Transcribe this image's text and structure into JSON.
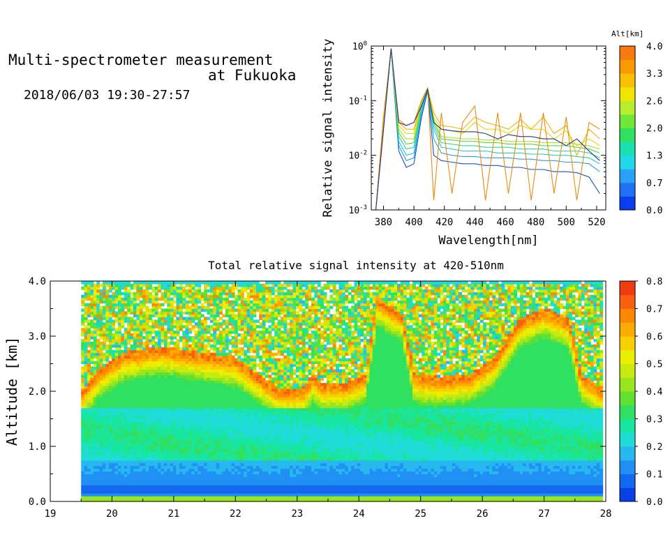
{
  "header": {
    "title_line1": "Multi-spectrometer measurement",
    "title_line2": "at Fukuoka",
    "datetime": "2018/06/03 19:30-27:57"
  },
  "chart_data": [
    {
      "type": "line",
      "title": "",
      "xlabel": "Wavelength[nm]",
      "ylabel": "Relative signal intensity",
      "xlim": [
        372,
        526
      ],
      "ylim": [
        0.001,
        1
      ],
      "y_scale": "log",
      "x_ticks": [
        "380",
        "400",
        "420",
        "440",
        "460",
        "480",
        "500",
        "520"
      ],
      "y_ticks": [
        "10-3",
        "10-2",
        "10-1",
        "100"
      ],
      "x": [
        375,
        380,
        385,
        390,
        395,
        400,
        405,
        409,
        413,
        418,
        425,
        432,
        440,
        447,
        455,
        462,
        470,
        477,
        485,
        492,
        500,
        507,
        515,
        522
      ],
      "colorbar": {
        "label": "Alt[km]",
        "ticks": [
          "0.0",
          "0.7",
          "1.3",
          "2.0",
          "2.6",
          "3.3",
          "4.0"
        ],
        "colors": [
          "#0a3cf0",
          "#1e70f5",
          "#2aa0f8",
          "#20d8e8",
          "#18e0b0",
          "#30e060",
          "#70e838",
          "#b8ec30",
          "#f0e400",
          "#f8c000",
          "#fa9a00",
          "#fa7a10"
        ]
      },
      "series": [
        {
          "color": "#1450c8",
          "values": [
            0.001,
            0.03,
            0.9,
            0.012,
            0.006,
            0.007,
            0.05,
            0.15,
            0.01,
            0.008,
            0.0075,
            0.007,
            0.007,
            0.0065,
            0.0065,
            0.006,
            0.006,
            0.0055,
            0.0055,
            0.005,
            0.005,
            0.0048,
            0.004,
            0.002
          ]
        },
        {
          "color": "#2a9ae8",
          "values": [
            0.001,
            0.035,
            0.9,
            0.015,
            0.008,
            0.009,
            0.06,
            0.16,
            0.02,
            0.011,
            0.01,
            0.0095,
            0.0095,
            0.009,
            0.009,
            0.009,
            0.0085,
            0.0085,
            0.008,
            0.008,
            0.0075,
            0.0075,
            0.007,
            0.005
          ]
        },
        {
          "color": "#20c8d0",
          "values": [
            0.001,
            0.04,
            0.9,
            0.018,
            0.01,
            0.011,
            0.07,
            0.17,
            0.03,
            0.014,
            0.013,
            0.012,
            0.012,
            0.012,
            0.011,
            0.011,
            0.011,
            0.0105,
            0.0105,
            0.01,
            0.01,
            0.0095,
            0.009,
            0.007
          ]
        },
        {
          "color": "#30d890",
          "values": [
            0.001,
            0.04,
            0.9,
            0.022,
            0.013,
            0.014,
            0.08,
            0.17,
            0.035,
            0.017,
            0.016,
            0.015,
            0.015,
            0.014,
            0.014,
            0.014,
            0.013,
            0.013,
            0.013,
            0.012,
            0.012,
            0.012,
            0.011,
            0.009
          ]
        },
        {
          "color": "#50d848",
          "values": [
            0.001,
            0.04,
            0.9,
            0.026,
            0.016,
            0.017,
            0.09,
            0.17,
            0.04,
            0.02,
            0.019,
            0.018,
            0.018,
            0.017,
            0.017,
            0.016,
            0.016,
            0.016,
            0.015,
            0.015,
            0.015,
            0.014,
            0.013,
            0.011
          ]
        },
        {
          "color": "#a8e030",
          "values": [
            0.001,
            0.04,
            0.9,
            0.03,
            0.02,
            0.02,
            0.09,
            0.17,
            0.045,
            0.022,
            0.021,
            0.02,
            0.02,
            0.019,
            0.019,
            0.018,
            0.018,
            0.018,
            0.017,
            0.017,
            0.017,
            0.016,
            0.015,
            0.013
          ]
        },
        {
          "color": "#e8d800",
          "values": [
            0.001,
            0.04,
            0.9,
            0.035,
            0.025,
            0.025,
            0.1,
            0.17,
            0.05,
            0.03,
            0.028,
            0.025,
            0.04,
            0.03,
            0.03,
            0.025,
            0.035,
            0.03,
            0.03,
            0.02,
            0.028,
            0.015,
            0.02,
            0.015
          ]
        },
        {
          "color": "#f0b000",
          "values": [
            0.001,
            0.05,
            0.9,
            0.04,
            0.03,
            0.03,
            0.1,
            0.17,
            0.06,
            0.035,
            0.033,
            0.03,
            0.05,
            0.04,
            0.035,
            0.03,
            0.045,
            0.03,
            0.05,
            0.025,
            0.035,
            0.01,
            0.03,
            0.02
          ]
        },
        {
          "color": "#e88a10",
          "values": [
            0.001,
            0.05,
            0.9,
            0.045,
            0.035,
            0.04,
            0.1,
            0.17,
            0.0015,
            0.06,
            0.002,
            0.04,
            0.08,
            0.0015,
            0.06,
            0.002,
            0.06,
            0.0015,
            0.06,
            0.002,
            0.05,
            0.0015,
            0.04,
            0.03
          ]
        },
        {
          "color": "#1a3a8a",
          "values": [
            0.001,
            0.03,
            0.9,
            0.04,
            0.035,
            0.04,
            0.08,
            0.16,
            0.04,
            0.03,
            0.028,
            0.027,
            0.027,
            0.025,
            0.02,
            0.024,
            0.022,
            0.022,
            0.02,
            0.02,
            0.015,
            0.02,
            0.012,
            0.008
          ]
        }
      ]
    },
    {
      "type": "heatmap",
      "title": "Total relative signal intensity at 420-510nm",
      "xlabel": "",
      "ylabel": "Altitude [km]",
      "xlim": [
        19,
        28
      ],
      "ylim": [
        0,
        4
      ],
      "x_ticks": [
        "19",
        "20",
        "21",
        "22",
        "23",
        "24",
        "25",
        "26",
        "27",
        "28"
      ],
      "y_ticks": [
        "0.0",
        "1.0",
        "2.0",
        "3.0",
        "4.0"
      ],
      "data_x_range": [
        19.5,
        27.95
      ],
      "cloud_base_km": [
        {
          "x": 19.5,
          "base": 1.9
        },
        {
          "x": 19.8,
          "base": 2.3
        },
        {
          "x": 20.2,
          "base": 2.6
        },
        {
          "x": 20.8,
          "base": 2.7
        },
        {
          "x": 21.4,
          "base": 2.6
        },
        {
          "x": 22.0,
          "base": 2.5
        },
        {
          "x": 22.5,
          "base": 2.1
        },
        {
          "x": 22.7,
          "base": 1.95
        },
        {
          "x": 23.1,
          "base": 1.95
        },
        {
          "x": 23.25,
          "base": 2.2
        },
        {
          "x": 23.4,
          "base": 2.05
        },
        {
          "x": 23.8,
          "base": 2.05
        },
        {
          "x": 24.1,
          "base": 2.2
        },
        {
          "x": 24.3,
          "base": 3.6
        },
        {
          "x": 24.7,
          "base": 3.3
        },
        {
          "x": 24.9,
          "base": 2.2
        },
        {
          "x": 25.3,
          "base": 2.15
        },
        {
          "x": 25.8,
          "base": 2.2
        },
        {
          "x": 26.2,
          "base": 2.5
        },
        {
          "x": 26.6,
          "base": 3.2
        },
        {
          "x": 27.0,
          "base": 3.4
        },
        {
          "x": 27.4,
          "base": 3.2
        },
        {
          "x": 27.6,
          "base": 2.2
        },
        {
          "x": 27.95,
          "base": 1.95
        }
      ],
      "colorbar": {
        "ticks": [
          "0.0",
          "0.1",
          "0.2",
          "0.3",
          "0.4",
          "0.5",
          "0.6",
          "0.7",
          "0.8"
        ],
        "colors": [
          "#0840e8",
          "#1468f0",
          "#2090f5",
          "#28b8f0",
          "#20dcd8",
          "#18e6a0",
          "#30e060",
          "#60e030",
          "#98e620",
          "#c8ea10",
          "#ecee00",
          "#f8d000",
          "#fcac00",
          "#fc8800",
          "#f86010",
          "#f03a10"
        ]
      }
    }
  ]
}
